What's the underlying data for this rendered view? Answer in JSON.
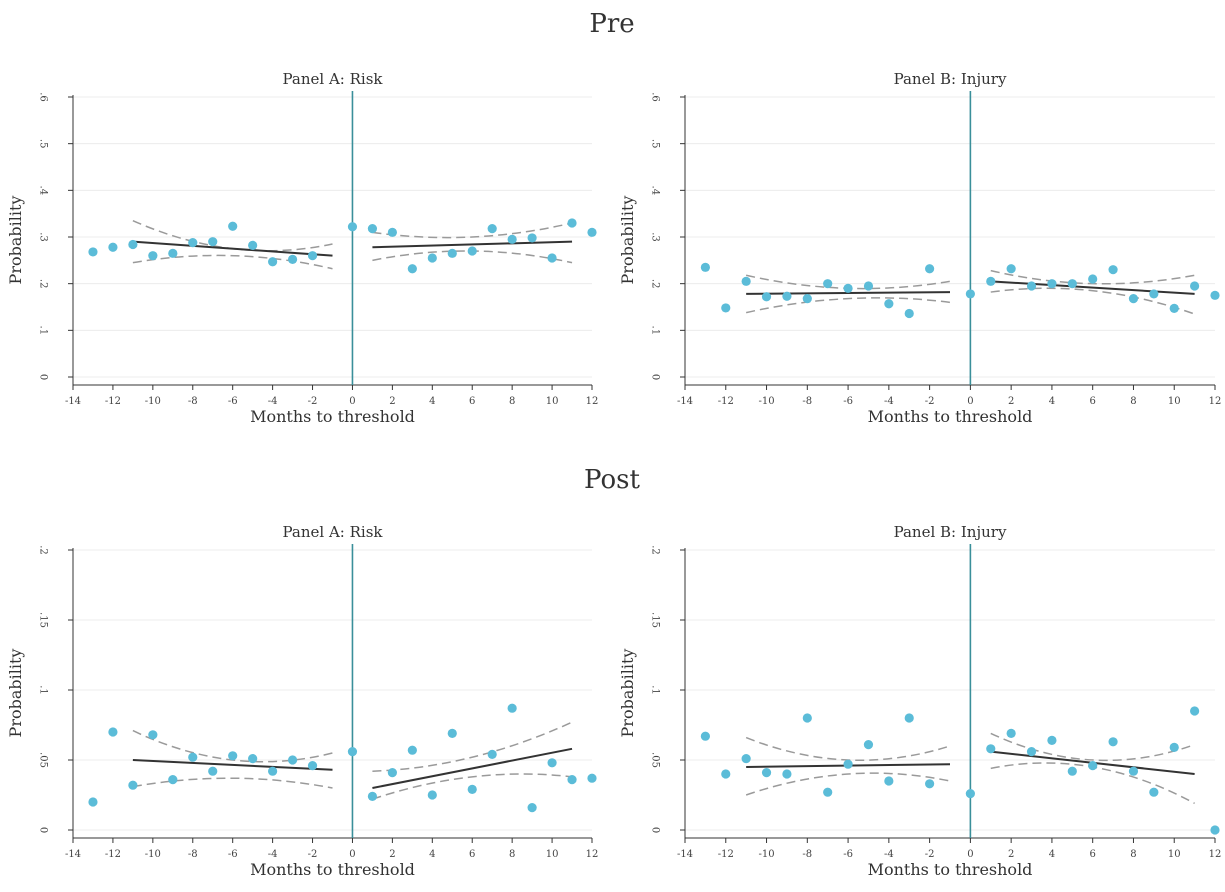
{
  "figure": {
    "groups": [
      {
        "title": "Pre"
      },
      {
        "title": "Post"
      }
    ]
  },
  "chart_data": [
    {
      "type": "scatter",
      "group": "Pre",
      "title": "Panel A: Risk",
      "xlabel": "Months to threshold",
      "ylabel": "Probability",
      "xlim": [
        -14,
        12
      ],
      "ylim": [
        0,
        0.6
      ],
      "x_ticks": [
        -14,
        -12,
        -10,
        -8,
        -6,
        -4,
        -2,
        0,
        2,
        4,
        6,
        8,
        10,
        12
      ],
      "y_ticks": [
        0,
        0.1,
        0.2,
        0.3,
        0.4,
        0.5,
        0.6
      ],
      "y_tick_labels": [
        "0",
        ".1",
        ".2",
        ".3",
        ".4",
        ".5",
        ".6"
      ],
      "grid": true,
      "cutoff_x": 0,
      "points": [
        [
          -13,
          0.268
        ],
        [
          -12,
          0.278
        ],
        [
          -11,
          0.284
        ],
        [
          -10,
          0.26
        ],
        [
          -9,
          0.265
        ],
        [
          -8,
          0.288
        ],
        [
          -7,
          0.29
        ],
        [
          -6,
          0.323
        ],
        [
          -5,
          0.282
        ],
        [
          -4,
          0.247
        ],
        [
          -3,
          0.252
        ],
        [
          -2,
          0.26
        ],
        [
          0,
          0.322
        ],
        [
          1,
          0.318
        ],
        [
          2,
          0.31
        ],
        [
          3,
          0.232
        ],
        [
          4,
          0.255
        ],
        [
          5,
          0.265
        ],
        [
          6,
          0.27
        ],
        [
          7,
          0.318
        ],
        [
          8,
          0.295
        ],
        [
          9,
          0.298
        ],
        [
          10,
          0.255
        ],
        [
          11,
          0.33
        ],
        [
          12,
          0.31
        ]
      ],
      "fit_left": {
        "x": [
          -11,
          -1
        ],
        "y": [
          0.29,
          0.26
        ]
      },
      "ci_left": {
        "x": [
          -11,
          -6,
          -1
        ],
        "upper": [
          0.335,
          0.275,
          0.285
        ],
        "lower": [
          0.245,
          0.26,
          0.232
        ]
      },
      "fit_right": {
        "x": [
          1,
          11
        ],
        "y": [
          0.278,
          0.29
        ]
      },
      "ci_right": {
        "x": [
          1,
          6,
          11
        ],
        "upper": [
          0.31,
          0.3,
          0.33
        ],
        "lower": [
          0.25,
          0.27,
          0.245
        ]
      }
    },
    {
      "type": "scatter",
      "group": "Pre",
      "title": "Panel B: Injury",
      "xlabel": "Months to threshold",
      "ylabel": "Probability",
      "xlim": [
        -14,
        12
      ],
      "ylim": [
        0,
        0.6
      ],
      "x_ticks": [
        -14,
        -12,
        -10,
        -8,
        -6,
        -4,
        -2,
        0,
        2,
        4,
        6,
        8,
        10,
        12
      ],
      "y_ticks": [
        0,
        0.1,
        0.2,
        0.3,
        0.4,
        0.5,
        0.6
      ],
      "y_tick_labels": [
        "0",
        ".1",
        ".2",
        ".3",
        ".4",
        ".5",
        ".6"
      ],
      "grid": true,
      "cutoff_x": 0,
      "points": [
        [
          -13,
          0.235
        ],
        [
          -12,
          0.148
        ],
        [
          -11,
          0.205
        ],
        [
          -10,
          0.172
        ],
        [
          -9,
          0.173
        ],
        [
          -8,
          0.168
        ],
        [
          -7,
          0.2
        ],
        [
          -6,
          0.19
        ],
        [
          -5,
          0.195
        ],
        [
          -4,
          0.157
        ],
        [
          -3,
          0.136
        ],
        [
          -2,
          0.232
        ],
        [
          0,
          0.178
        ],
        [
          1,
          0.205
        ],
        [
          2,
          0.232
        ],
        [
          3,
          0.195
        ],
        [
          4,
          0.2
        ],
        [
          5,
          0.2
        ],
        [
          6,
          0.21
        ],
        [
          7,
          0.23
        ],
        [
          8,
          0.168
        ],
        [
          9,
          0.178
        ],
        [
          10,
          0.147
        ],
        [
          11,
          0.195
        ],
        [
          12,
          0.175
        ]
      ],
      "fit_left": {
        "x": [
          -11,
          -1
        ],
        "y": [
          0.178,
          0.182
        ]
      },
      "ci_left": {
        "x": [
          -11,
          -6,
          -1
        ],
        "upper": [
          0.218,
          0.19,
          0.205
        ],
        "lower": [
          0.138,
          0.168,
          0.16
        ]
      },
      "fit_right": {
        "x": [
          1,
          11
        ],
        "y": [
          0.205,
          0.178
        ]
      },
      "ci_right": {
        "x": [
          1,
          6,
          11
        ],
        "upper": [
          0.228,
          0.2,
          0.218
        ],
        "lower": [
          0.182,
          0.185,
          0.135
        ]
      }
    },
    {
      "type": "scatter",
      "group": "Post",
      "title": "Panel A: Risk",
      "xlabel": "Months to threshold",
      "ylabel": "Probability",
      "xlim": [
        -14,
        12
      ],
      "ylim": [
        0,
        0.2
      ],
      "x_ticks": [
        -14,
        -12,
        -10,
        -8,
        -6,
        -4,
        -2,
        0,
        2,
        4,
        6,
        8,
        10,
        12
      ],
      "y_ticks": [
        0,
        0.05,
        0.1,
        0.15,
        0.2
      ],
      "y_tick_labels": [
        "0",
        ".05",
        ".1",
        ".15",
        ".2"
      ],
      "grid": true,
      "cutoff_x": 0,
      "points": [
        [
          -13,
          0.02
        ],
        [
          -12,
          0.07
        ],
        [
          -11,
          0.032
        ],
        [
          -10,
          0.068
        ],
        [
          -9,
          0.036
        ],
        [
          -8,
          0.052
        ],
        [
          -7,
          0.042
        ],
        [
          -6,
          0.053
        ],
        [
          -5,
          0.051
        ],
        [
          -4,
          0.042
        ],
        [
          -3,
          0.05
        ],
        [
          -2,
          0.046
        ],
        [
          0,
          0.056
        ],
        [
          1,
          0.024
        ],
        [
          2,
          0.041
        ],
        [
          3,
          0.057
        ],
        [
          4,
          0.025
        ],
        [
          5,
          0.069
        ],
        [
          6,
          0.029
        ],
        [
          7,
          0.054
        ],
        [
          8,
          0.087
        ],
        [
          9,
          0.016
        ],
        [
          10,
          0.048
        ],
        [
          11,
          0.036
        ],
        [
          12,
          0.037
        ]
      ],
      "fit_left": {
        "x": [
          -11,
          -1
        ],
        "y": [
          0.05,
          0.043
        ]
      },
      "ci_left": {
        "x": [
          -11,
          -6,
          -1
        ],
        "upper": [
          0.071,
          0.05,
          0.055
        ],
        "lower": [
          0.031,
          0.037,
          0.03
        ]
      },
      "fit_right": {
        "x": [
          1,
          11
        ],
        "y": [
          0.03,
          0.058
        ]
      },
      "ci_right": {
        "x": [
          1,
          6,
          11
        ],
        "upper": [
          0.042,
          0.052,
          0.077
        ],
        "lower": [
          0.022,
          0.038,
          0.038
        ]
      }
    },
    {
      "type": "scatter",
      "group": "Post",
      "title": "Panel B: Injury",
      "xlabel": "Months to threshold",
      "ylabel": "Probability",
      "xlim": [
        -14,
        12
      ],
      "ylim": [
        0,
        0.2
      ],
      "x_ticks": [
        -14,
        -12,
        -10,
        -8,
        -6,
        -4,
        -2,
        0,
        2,
        4,
        6,
        8,
        10,
        12
      ],
      "y_ticks": [
        0,
        0.05,
        0.1,
        0.15,
        0.2
      ],
      "y_tick_labels": [
        "0",
        ".05",
        ".1",
        ".15",
        ".2"
      ],
      "grid": true,
      "cutoff_x": 0,
      "points": [
        [
          -13,
          0.067
        ],
        [
          -12,
          0.04
        ],
        [
          -11,
          0.051
        ],
        [
          -10,
          0.041
        ],
        [
          -9,
          0.04
        ],
        [
          -8,
          0.08
        ],
        [
          -7,
          0.027
        ],
        [
          -6,
          0.047
        ],
        [
          -5,
          0.061
        ],
        [
          -4,
          0.035
        ],
        [
          -3,
          0.08
        ],
        [
          -2,
          0.033
        ],
        [
          0,
          0.026
        ],
        [
          1,
          0.058
        ],
        [
          2,
          0.069
        ],
        [
          3,
          0.056
        ],
        [
          4,
          0.064
        ],
        [
          5,
          0.042
        ],
        [
          6,
          0.046
        ],
        [
          7,
          0.063
        ],
        [
          8,
          0.042
        ],
        [
          9,
          0.027
        ],
        [
          10,
          0.059
        ],
        [
          11,
          0.085
        ],
        [
          12,
          0.0
        ]
      ],
      "fit_left": {
        "x": [
          -11,
          -1
        ],
        "y": [
          0.045,
          0.047
        ]
      },
      "ci_left": {
        "x": [
          -11,
          -6,
          -1
        ],
        "upper": [
          0.066,
          0.05,
          0.06
        ],
        "lower": [
          0.025,
          0.04,
          0.035
        ]
      },
      "fit_right": {
        "x": [
          1,
          11
        ],
        "y": [
          0.056,
          0.04
        ]
      },
      "ci_right": {
        "x": [
          1,
          6,
          11
        ],
        "upper": [
          0.069,
          0.05,
          0.061
        ],
        "lower": [
          0.044,
          0.045,
          0.019
        ]
      }
    }
  ]
}
